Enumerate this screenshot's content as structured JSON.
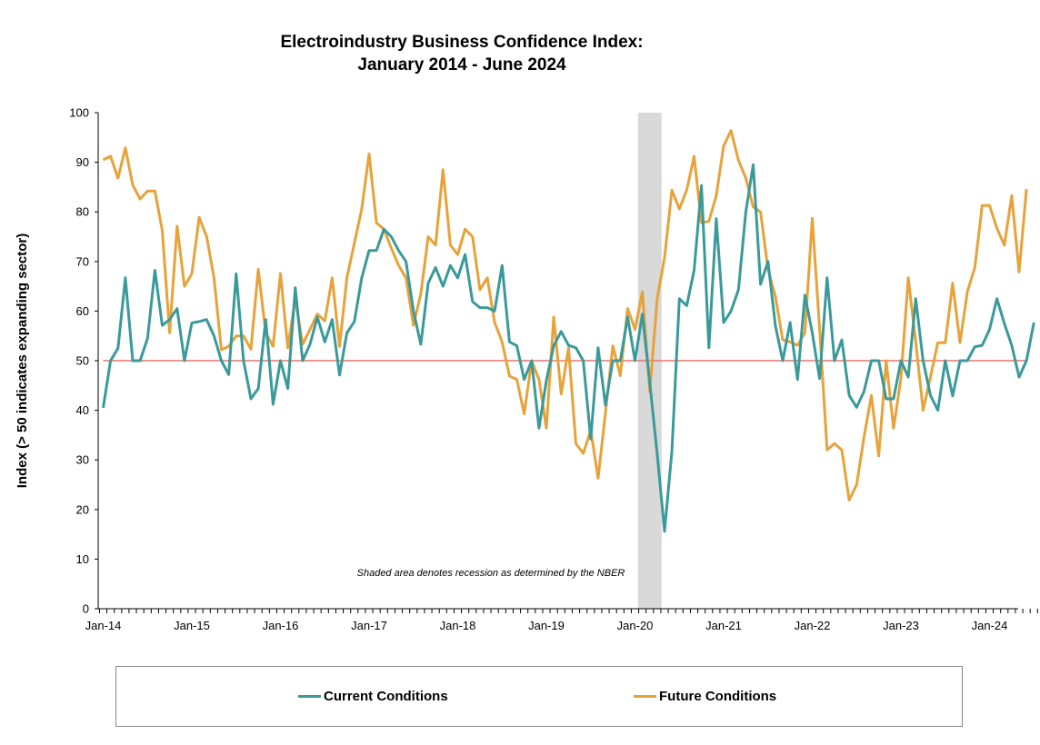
{
  "chart_data": {
    "type": "line",
    "title": "Electroindustry Business Confidence Index:",
    "subtitle": "January 2014 - June 2024",
    "ylabel": "Index (> 50 indicates expanding sector)",
    "xlabel": "",
    "ylim": [
      0,
      100
    ],
    "yticks": [
      0,
      10,
      20,
      30,
      40,
      50,
      60,
      70,
      80,
      90,
      100
    ],
    "xtick_labels": [
      "Jan-14",
      "Jan-15",
      "Jan-16",
      "Jan-17",
      "Jan-18",
      "Jan-19",
      "Jan-20",
      "Jan-21",
      "Jan-22",
      "Jan-23",
      "Jan-24"
    ],
    "reference_line": {
      "value": 50,
      "color": "#e8736c"
    },
    "recession": {
      "start_month_index": 73,
      "end_month_index": 75,
      "color": "#d9d9d9"
    },
    "note": "Shaded area denotes recession as determined by the NBER",
    "legend_position": "bottom",
    "series": [
      {
        "name": "Current Conditions",
        "color": "#3a9a9a",
        "values": [
          40.5,
          50,
          52.5,
          66.7,
          50,
          50,
          54.5,
          68.2,
          57.1,
          58.3,
          60.5,
          50,
          57.6,
          57.9,
          58.3,
          55,
          50,
          47.2,
          67.5,
          50,
          42.3,
          44.4,
          58.3,
          41.2,
          50,
          44.4,
          64.7,
          50,
          53.3,
          58.8,
          53.8,
          58.3,
          47.1,
          55.6,
          57.9,
          66.7,
          72.2,
          72.2,
          76.5,
          75,
          72.2,
          70,
          60,
          53.3,
          65.6,
          68.8,
          65,
          69.2,
          66.7,
          71.4,
          61.9,
          60.7,
          60.7,
          60,
          69.2,
          53.8,
          53,
          46.2,
          50,
          36.4,
          46,
          53,
          55.9,
          53.1,
          52.6,
          50,
          34.2,
          52.6,
          41,
          50,
          50,
          58.8,
          50,
          59.4,
          45.5,
          31.2,
          15.6,
          31.8,
          62.5,
          61.1,
          68.2,
          85.3,
          52.6,
          78.6,
          57.7,
          60,
          64.3,
          80,
          89.5,
          65.4,
          70,
          57.1,
          50,
          57.7,
          46.2,
          63.2,
          55.6,
          46.4,
          66.7,
          50,
          54.2,
          43,
          40.6,
          43.8,
          50,
          50,
          42.3,
          42.3,
          50,
          46.7,
          62.5,
          50,
          43,
          40,
          50,
          42.9,
          50,
          50,
          52.8,
          53.1,
          56.3,
          62.5,
          57.5,
          53.1,
          46.7,
          50,
          57.7
        ]
      },
      {
        "name": "Future Conditions",
        "color": "#e8a23a",
        "values": [
          90.5,
          91.2,
          86.8,
          92.9,
          85.4,
          82.6,
          84.2,
          84.2,
          76.2,
          55.6,
          77.1,
          65,
          67.5,
          78.9,
          75,
          66.7,
          52.2,
          52.9,
          55,
          55,
          52.3,
          68.4,
          55.6,
          52.9,
          67.6,
          52.6,
          62.5,
          53.3,
          56.3,
          59.4,
          58,
          66.7,
          52.9,
          66.7,
          73.7,
          80.6,
          91.7,
          77.8,
          76.5,
          72.7,
          69.2,
          66.7,
          57.1,
          63.5,
          75,
          73.3,
          88.5,
          73.3,
          71.4,
          76.5,
          75,
          64.3,
          66.7,
          57.7,
          53.8,
          46.9,
          46.2,
          39.3,
          50,
          46.2,
          36.4,
          58.8,
          43.3,
          52.6,
          33.3,
          31.3,
          36,
          26.3,
          39.5,
          53,
          47,
          60.5,
          56.3,
          63.9,
          43.8,
          62.5,
          70.8,
          84.4,
          80.6,
          84.4,
          91.2,
          77.8,
          78.1,
          83.3,
          93.3,
          96.4,
          90.4,
          86.8,
          81,
          80,
          68.4,
          63,
          54.2,
          53.8,
          53.1,
          55.6,
          78.7,
          56.3,
          32,
          33.3,
          32,
          21.9,
          25,
          34.6,
          43,
          30.8,
          50,
          36.4,
          46.4,
          66.7,
          53.8,
          40,
          46.7,
          53.6,
          53.6,
          65.6,
          53.6,
          63.9,
          68.8,
          81.3,
          81.3,
          76.7,
          73.3,
          83.3,
          67.9,
          84.6
        ]
      }
    ]
  }
}
